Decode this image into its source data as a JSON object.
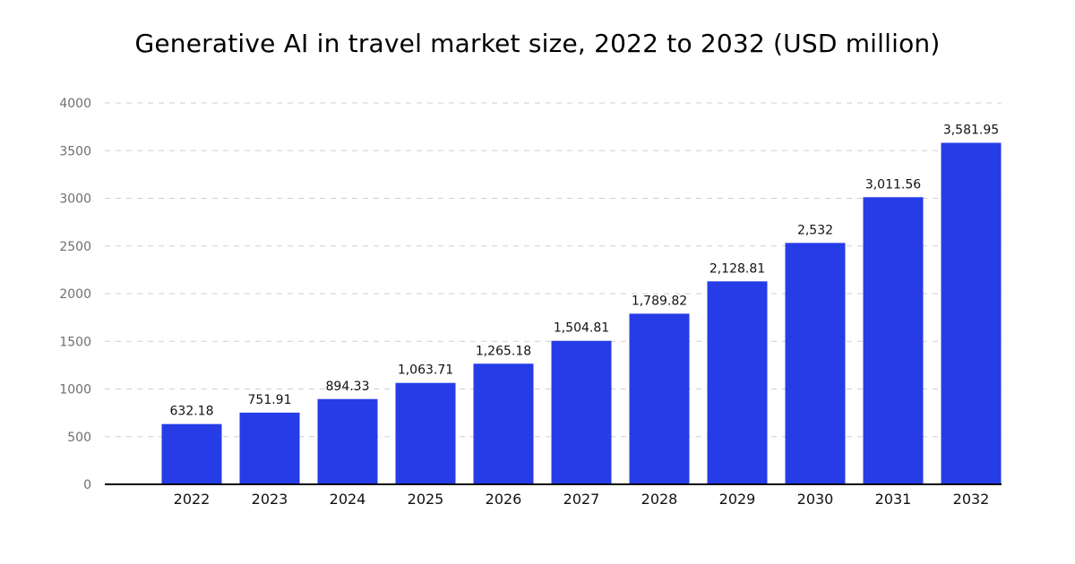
{
  "colors": {
    "bar": "#263CE6",
    "grid": "#cfcfcf",
    "axis": "#000000",
    "background": "#ffffff"
  },
  "chart_data": {
    "type": "bar",
    "title": "Generative AI in travel market size, 2022 to 2032 (USD million)",
    "categories": [
      "2022",
      "2023",
      "2024",
      "2025",
      "2026",
      "2027",
      "2028",
      "2029",
      "2030",
      "2031",
      "2032"
    ],
    "values": [
      632.18,
      751.91,
      894.33,
      1063.71,
      1265.18,
      1504.81,
      1789.82,
      2128.81,
      2532,
      3011.56,
      3581.95
    ],
    "data_labels": [
      "632.18",
      "751.91",
      "894.33",
      "1,063.71",
      "1,265.18",
      "1,504.81",
      "1,789.82",
      "2,128.81",
      "2,532",
      "3,011.56",
      "3,581.95"
    ],
    "ylim": [
      0,
      4000
    ],
    "yticks": [
      "0",
      "500",
      "1000",
      "1500",
      "2000",
      "2500",
      "3000",
      "3500",
      "4000"
    ],
    "grid": true,
    "legend": "none"
  }
}
